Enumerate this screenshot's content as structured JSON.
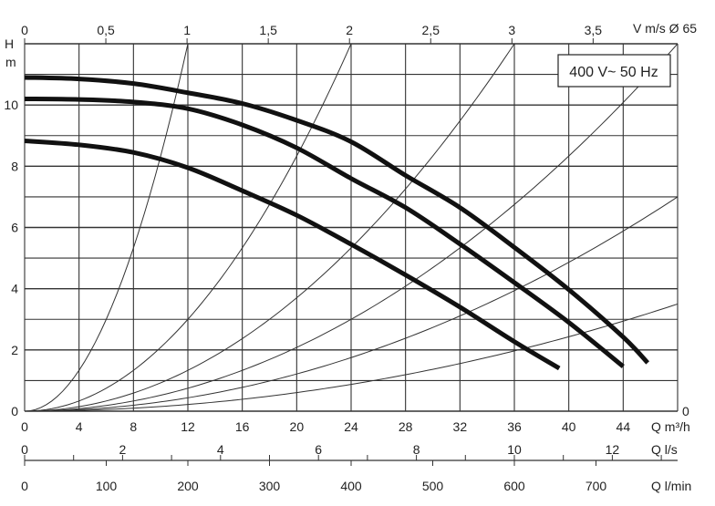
{
  "chart_data": {
    "type": "line",
    "title": "",
    "y_axis": {
      "label_line1": "H",
      "label_line2": "m",
      "range": [
        0,
        12
      ],
      "ticks": [
        "0",
        "2",
        "4",
        "6",
        "8",
        "10"
      ],
      "right_zero_label": "0",
      "grid_step": 1
    },
    "x_axis_m3h": {
      "label": "Q m³/h",
      "range": [
        0,
        48
      ],
      "ticks": [
        "0",
        "4",
        "8",
        "12",
        "16",
        "20",
        "24",
        "28",
        "32",
        "36",
        "40",
        "44"
      ]
    },
    "x_axis_ls": {
      "label": "Q l/s",
      "ticks": [
        "0",
        "2",
        "4",
        "6",
        "8",
        "10",
        "12"
      ]
    },
    "x_axis_lmin": {
      "label": "Q l/min",
      "ticks": [
        "0",
        "100",
        "200",
        "300",
        "400",
        "500",
        "600",
        "700"
      ]
    },
    "x_axis_velocity": {
      "label": "V m/s Ø 65",
      "ticks": [
        "0",
        "0,5",
        "1",
        "1,5",
        "2",
        "2,5",
        "3",
        "3,5"
      ]
    },
    "annotation": "400 V~ 50 Hz",
    "grid": true,
    "pump_curves": [
      {
        "points": [
          [
            0,
            10.9
          ],
          [
            4,
            10.85
          ],
          [
            8,
            10.7
          ],
          [
            12,
            10.4
          ],
          [
            16,
            10.05
          ],
          [
            20,
            9.5
          ],
          [
            24,
            8.8
          ],
          [
            28,
            7.7
          ],
          [
            32,
            6.65
          ],
          [
            36,
            5.35
          ],
          [
            40,
            3.97
          ],
          [
            44,
            2.42
          ],
          [
            45.8,
            1.58
          ]
        ]
      },
      {
        "points": [
          [
            0,
            10.2
          ],
          [
            4,
            10.18
          ],
          [
            8,
            10.1
          ],
          [
            12,
            9.88
          ],
          [
            16,
            9.35
          ],
          [
            20,
            8.6
          ],
          [
            24,
            7.6
          ],
          [
            28,
            6.65
          ],
          [
            32,
            5.46
          ],
          [
            36,
            4.2
          ],
          [
            40,
            2.9
          ],
          [
            44,
            1.46
          ]
        ]
      },
      {
        "points": [
          [
            0,
            8.83
          ],
          [
            4,
            8.7
          ],
          [
            8,
            8.45
          ],
          [
            12,
            7.95
          ],
          [
            16,
            7.2
          ],
          [
            20,
            6.4
          ],
          [
            24,
            5.45
          ],
          [
            28,
            4.45
          ],
          [
            32,
            3.4
          ],
          [
            36,
            2.27
          ],
          [
            39.3,
            1.4
          ]
        ]
      }
    ],
    "system_curves": [
      {
        "q": 12,
        "h": 12
      },
      {
        "q": 24,
        "h": 12
      },
      {
        "q": 36,
        "h": 12
      },
      {
        "q": 48,
        "h": 12
      },
      {
        "q": 48,
        "h": 7
      },
      {
        "q": 48,
        "h": 3.5
      }
    ]
  }
}
